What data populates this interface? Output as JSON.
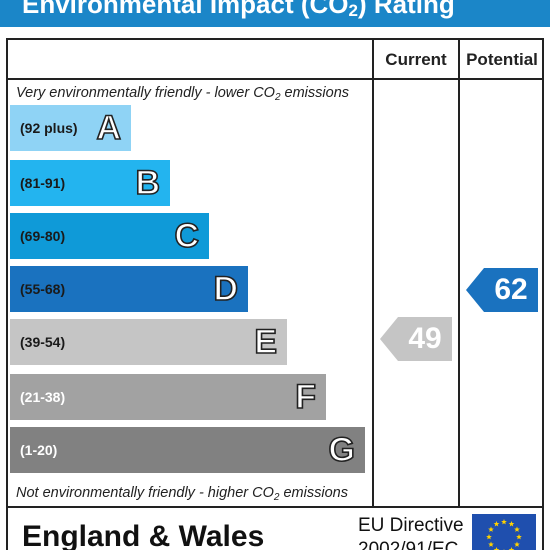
{
  "header": {
    "title_pre": "Environmental Impact (CO",
    "title_sub": "2",
    "title_post": ") Rating"
  },
  "columns": {
    "current": "Current",
    "potential": "Potential"
  },
  "notes": {
    "top_pre": "Very environmentally friendly - lower CO",
    "top_sub": "2",
    "top_post": " emissions",
    "bottom_pre": "Not environmentally friendly - higher CO",
    "bottom_sub": "2",
    "bottom_post": " emissions"
  },
  "bands": [
    {
      "range": "(92 plus)",
      "letter": "A",
      "color": "#8fd3f5",
      "text_color": "#1a1a1a"
    },
    {
      "range": "(81-91)",
      "letter": "B",
      "color": "#23b4ef",
      "text_color": "#1a1a1a"
    },
    {
      "range": "(69-80)",
      "letter": "C",
      "color": "#0f9ad8",
      "text_color": "#1a1a1a"
    },
    {
      "range": "(55-68)",
      "letter": "D",
      "color": "#1a72bf",
      "text_color": "#1a1a1a"
    },
    {
      "range": "(39-54)",
      "letter": "E",
      "color": "#c5c5c5",
      "text_color": "#1a1a1a"
    },
    {
      "range": "(21-38)",
      "letter": "F",
      "color": "#a2a2a2",
      "text_color": "#ffffff"
    },
    {
      "range": "(1-20)",
      "letter": "G",
      "color": "#818181",
      "text_color": "#ffffff"
    }
  ],
  "ratings": {
    "current": {
      "value": "49",
      "color": "#c5c5c5"
    },
    "potential": {
      "value": "62",
      "color": "#1a72bf"
    }
  },
  "footer": {
    "region": "England & Wales",
    "directive_line1": "EU Directive",
    "directive_line2": "2002/91/EC"
  }
}
